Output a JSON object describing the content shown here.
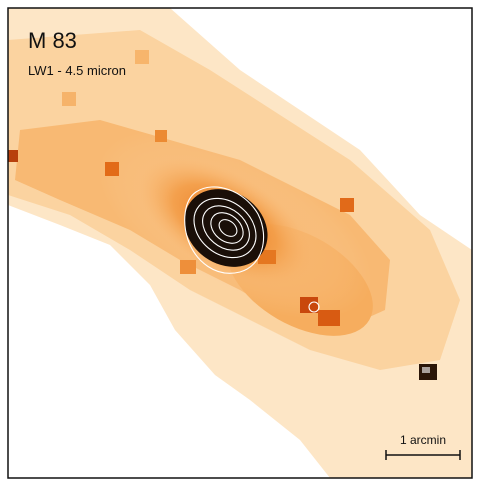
{
  "image": {
    "title": "M 83",
    "band_label": "LW1 - 4.5 micron",
    "scale_bar_label": "1 arcmin",
    "colors": {
      "background": "#ffffff",
      "frame": "#111111",
      "light_emission": "#fde3be",
      "mid_emission": "#f7ac5c",
      "bright_emission": "#ee8223",
      "peak_emission": "#d6520f",
      "core": "#1a0f08",
      "contours": "#ffffff"
    }
  }
}
